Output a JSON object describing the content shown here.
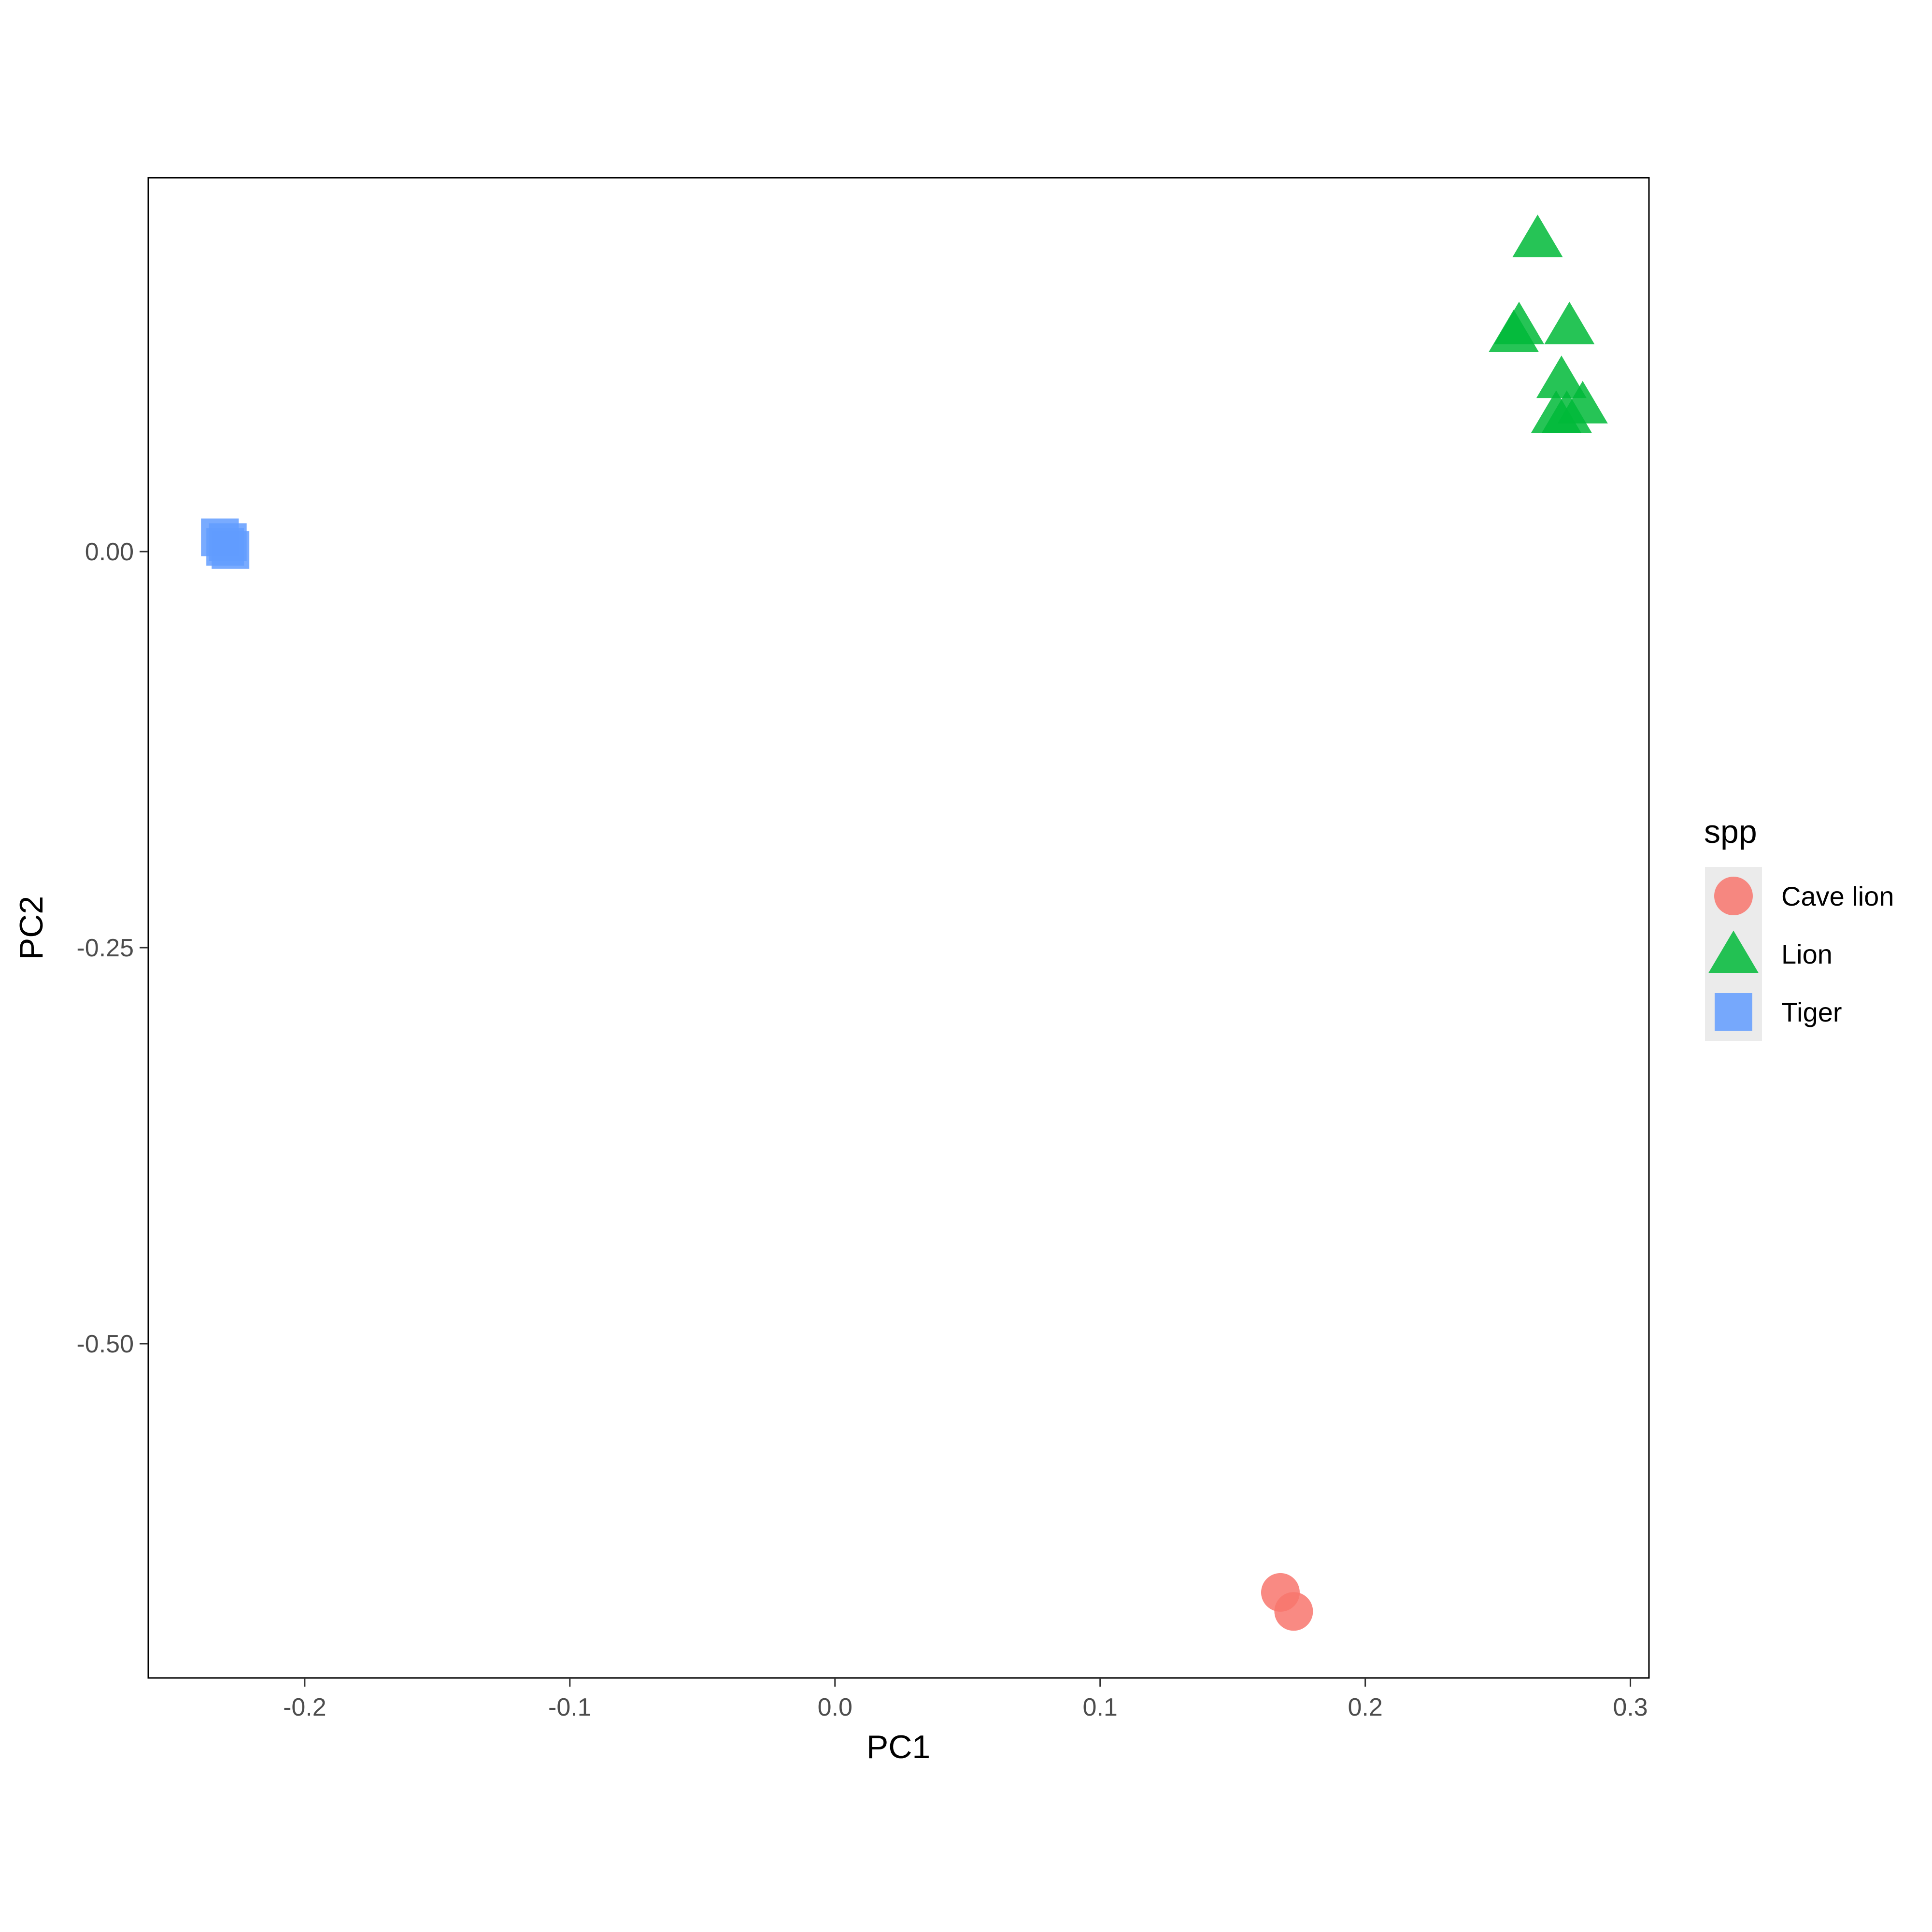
{
  "chart_data": {
    "type": "scatter",
    "title": "",
    "xlabel": "PC1",
    "ylabel": "PC2",
    "xlim": [
      -0.259,
      0.307
    ],
    "ylim": [
      -0.711,
      0.236
    ],
    "x_ticks": [
      -0.2,
      -0.1,
      0.0,
      0.1,
      0.2,
      0.3
    ],
    "x_tick_labels": [
      "-0.2",
      "-0.1",
      "0.0",
      "0.1",
      "0.2",
      "0.3"
    ],
    "y_ticks": [
      0.0,
      -0.25,
      -0.5
    ],
    "y_tick_labels": [
      "0.00",
      "-0.25",
      "-0.50"
    ],
    "grid": false,
    "legend": {
      "title": "spp",
      "placement": "right"
    },
    "series": [
      {
        "name": "Cave lion",
        "shape": "circle",
        "color": "#F8766D",
        "points": [
          {
            "x": 0.168,
            "y": -0.657
          },
          {
            "x": 0.173,
            "y": -0.669
          }
        ]
      },
      {
        "name": "Lion",
        "shape": "triangle",
        "color": "#00BA38",
        "points": [
          {
            "x": 0.265,
            "y": 0.198
          },
          {
            "x": 0.258,
            "y": 0.143
          },
          {
            "x": 0.277,
            "y": 0.143
          },
          {
            "x": 0.256,
            "y": 0.138
          },
          {
            "x": 0.274,
            "y": 0.109
          },
          {
            "x": 0.282,
            "y": 0.093
          },
          {
            "x": 0.272,
            "y": 0.087
          },
          {
            "x": 0.276,
            "y": 0.087
          }
        ]
      },
      {
        "name": "Tiger",
        "shape": "square",
        "color": "#619CFF",
        "points": [
          {
            "x": -0.232,
            "y": 0.009
          },
          {
            "x": -0.229,
            "y": 0.006
          },
          {
            "x": -0.23,
            "y": 0.003
          },
          {
            "x": -0.228,
            "y": 0.001
          }
        ]
      }
    ]
  }
}
